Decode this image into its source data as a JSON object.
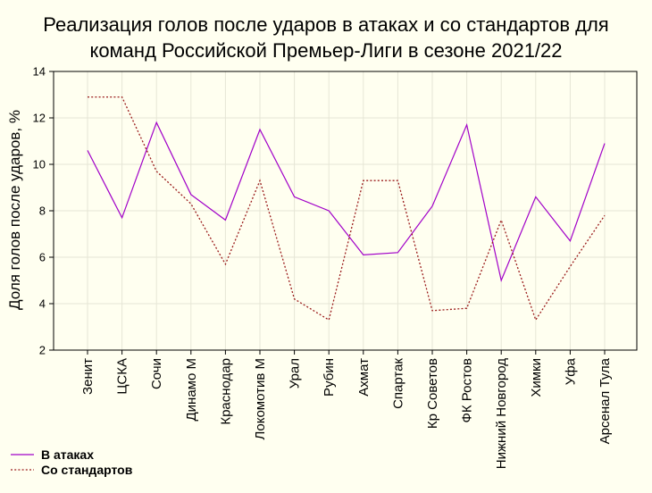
{
  "chart_data": {
    "type": "line",
    "title_lines": [
      "Реализация голов после ударов в атаках и со стандартов для",
      "команд Российской Премьер-Лиги в сезоне 2021/22"
    ],
    "xlabel": "",
    "ylabel": "Доля голов после ударов, %",
    "ylim": [
      2,
      14
    ],
    "yticks": [
      "2",
      "4",
      "6",
      "8",
      "10",
      "12",
      "14"
    ],
    "grid": true,
    "legend_position": "bottom-left",
    "categories": [
      "Зенит",
      "ЦСКА",
      "Сочи",
      "Динамо М",
      "Краснодар",
      "Локомотив М",
      "Урал",
      "Рубин",
      "Ахмат",
      "Спартак",
      "Кр Советов",
      "ФК Ростов",
      "Нижний Новгород",
      "Химки",
      "Уфа",
      "Арсенал Тула"
    ],
    "series": [
      {
        "name": "В атаках",
        "color": "#a100c8",
        "style": "solid",
        "values": [
          10.6,
          7.7,
          11.8,
          8.7,
          7.6,
          11.5,
          8.6,
          8.0,
          6.1,
          6.2,
          8.2,
          11.7,
          5.0,
          8.6,
          6.7,
          10.9
        ]
      },
      {
        "name": "Со стандартов",
        "color": "#9b1c1c",
        "style": "dotted",
        "values": [
          12.9,
          12.9,
          9.7,
          8.3,
          5.7,
          9.3,
          4.2,
          3.3,
          9.3,
          9.3,
          3.7,
          3.8,
          7.6,
          3.3,
          5.6,
          7.8
        ]
      }
    ]
  }
}
